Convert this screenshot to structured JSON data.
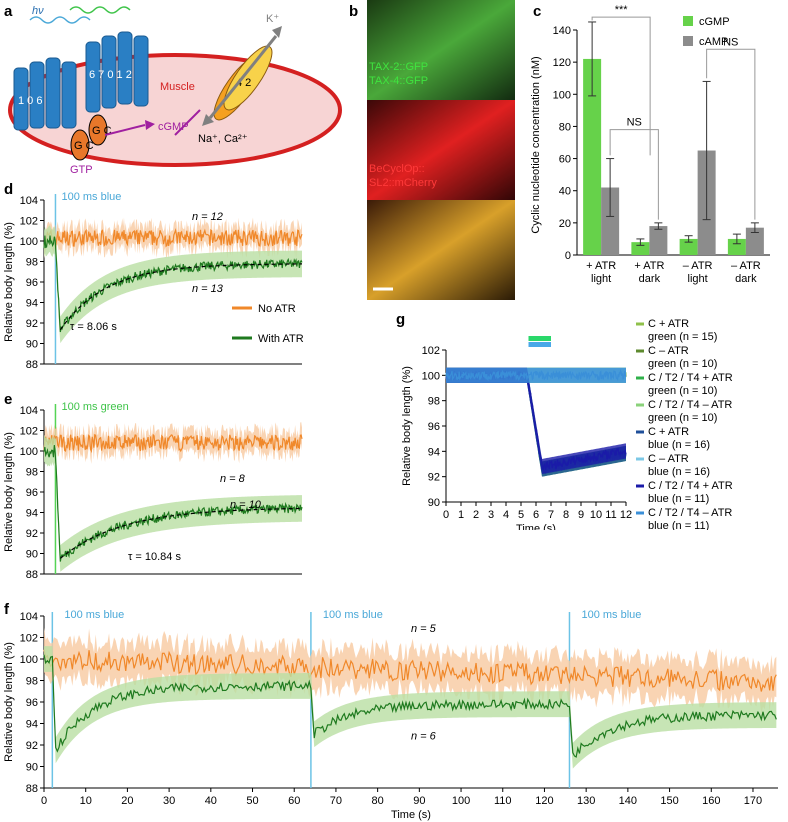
{
  "panel_labels": {
    "a": "a",
    "b": "b",
    "c": "c",
    "d": "d",
    "e": "e",
    "f": "f",
    "g": "g"
  },
  "colors": {
    "no_atr": "#f0882a",
    "no_atr_band": "#f7c9a0",
    "with_atr": "#1f7a1f",
    "with_atr_band": "#b9dea3",
    "stim_blue": "#6cc3e6",
    "stim_green": "#55d455",
    "cgmp": "#66d24a",
    "camp": "#8c8c8c"
  },
  "diagram": {
    "hv": "hν",
    "muscle": "Muscle",
    "k_ion": "K⁺",
    "cgmp": "cGMP",
    "gtp": "GTP",
    "cations": "Na⁺, Ca²⁺",
    "gc1": "G C",
    "gc2": "G C",
    "helix_numbers_left": "1 0 6",
    "helix_numbers_right": "6 7 0 1 2",
    "channel": "4 2"
  },
  "micrograph": {
    "label1": "TAX-2::GFP",
    "label2": "TAX-4::GFP",
    "label3": "BeCyclOp::",
    "label4": "SL2::mCherry"
  },
  "chart_data": [
    {
      "id": "c",
      "type": "bar",
      "categories": [
        "+ ATR light",
        "+ ATR dark",
        "– ATR light",
        "– ATR dark"
      ],
      "category_lines": [
        [
          "+ ATR",
          "light"
        ],
        [
          "+ ATR",
          "dark"
        ],
        [
          "– ATR",
          "light"
        ],
        [
          "– ATR",
          "dark"
        ]
      ],
      "series": [
        {
          "name": "cGMP",
          "values": [
            122,
            8,
            10,
            10
          ],
          "errors": [
            23,
            2,
            2,
            3
          ]
        },
        {
          "name": "cAMP",
          "values": [
            42,
            18,
            65,
            17
          ],
          "errors": [
            18,
            2,
            43,
            3
          ]
        }
      ],
      "ylabel": "Cyclic nucleotide concentration (nM)",
      "ylim": [
        0,
        140
      ],
      "yticks": [
        0,
        20,
        40,
        60,
        80,
        100,
        120,
        140
      ],
      "significance": [
        "***",
        "NS",
        "NS"
      ]
    },
    {
      "id": "d",
      "type": "line",
      "ylabel": "Relative body length (%)",
      "ylim": [
        88,
        104
      ],
      "yticks": [
        88,
        90,
        92,
        94,
        96,
        98,
        100,
        102,
        104
      ],
      "xlim": [
        0,
        45
      ],
      "stimulus": {
        "label": "100 ms blue",
        "at": 2
      },
      "series": [
        {
          "name": "No ATR",
          "n": "n = 12",
          "baseline": 100.3
        },
        {
          "name": "With ATR",
          "n": "n = 13",
          "min": 91.3,
          "plateau": 97.8,
          "tau": 8.06
        }
      ],
      "annotation": "τ = 8.06 s",
      "legend": [
        "No ATR",
        "With ATR"
      ]
    },
    {
      "id": "e",
      "type": "line",
      "ylabel": "Relative body length (%)",
      "ylim": [
        88,
        104
      ],
      "yticks": [
        88,
        90,
        92,
        94,
        96,
        98,
        100,
        102,
        104
      ],
      "xlim": [
        0,
        45
      ],
      "stimulus": {
        "label": "100 ms green",
        "at": 2
      },
      "series": [
        {
          "name": "No ATR",
          "n": "n = 8",
          "baseline": 100.8
        },
        {
          "name": "With ATR",
          "n": "n = 10",
          "min": 89.5,
          "plateau": 94.5,
          "tau": 10.84
        }
      ],
      "annotation": "τ = 10.84 s"
    },
    {
      "id": "f",
      "type": "line",
      "ylabel": "Relative body length (%)",
      "xlabel": "Time (s)",
      "ylim": [
        88,
        104
      ],
      "yticks": [
        88,
        90,
        92,
        94,
        96,
        98,
        100,
        102,
        104
      ],
      "xlim": [
        0,
        176
      ],
      "xticks": [
        0,
        10,
        20,
        30,
        40,
        50,
        60,
        70,
        80,
        90,
        100,
        110,
        120,
        130,
        140,
        150,
        160,
        170
      ],
      "stimuli": [
        {
          "label": "100 ms blue",
          "at": 2
        },
        {
          "label": "100 ms blue",
          "at": 64
        },
        {
          "label": "100 ms blue",
          "at": 126
        }
      ],
      "series": [
        {
          "name": "No ATR",
          "n": "n = 5"
        },
        {
          "name": "With ATR",
          "n": "n = 6"
        }
      ]
    },
    {
      "id": "g",
      "type": "line",
      "ylabel": "Relative body length (%)",
      "xlabel": "Time (s)",
      "ylim": [
        90,
        102
      ],
      "yticks": [
        90,
        92,
        94,
        96,
        98,
        100,
        102
      ],
      "xlim": [
        0,
        12
      ],
      "xticks": [
        0,
        1,
        2,
        3,
        4,
        5,
        6,
        7,
        8,
        9,
        10,
        11,
        12
      ],
      "stimulus_bar": {
        "from": 5.5,
        "to": 7.0
      },
      "legend": [
        {
          "lines": [
            "C + ATR",
            "green (n = 15)"
          ],
          "color": "#8fc04a"
        },
        {
          "lines": [
            "C – ATR",
            "green (n = 10)"
          ],
          "color": "#5d8a2e"
        },
        {
          "lines": [
            "C / T2 / T4 + ATR",
            "green (n = 10)"
          ],
          "color": "#2fb14a"
        },
        {
          "lines": [
            "C / T2 / T4 – ATR",
            "green (n = 10)"
          ],
          "color": "#8ad27a"
        },
        {
          "lines": [
            "C + ATR",
            "blue (n = 16)"
          ],
          "color": "#1f4f9a"
        },
        {
          "lines": [
            "C – ATR",
            "blue (n = 16)"
          ],
          "color": "#7cc8e6"
        },
        {
          "lines": [
            "C / T2 / T4 + ATR",
            "blue (n = 11)"
          ],
          "color": "#1a1aa8"
        },
        {
          "lines": [
            "C / T2 / T4 – ATR",
            "blue (n = 11)"
          ],
          "color": "#3a8fd8"
        }
      ]
    }
  ]
}
